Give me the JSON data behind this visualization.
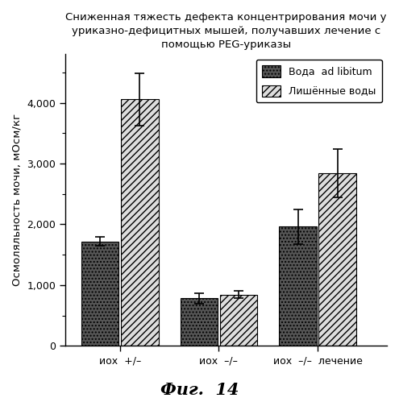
{
  "title_line1": "Сниженная тяжесть дефекта концентрирования мочи у",
  "title_line2": "уриказно-дефицитных мышей, получавших лечение с",
  "title_line3": "помощью PEG-уриказы",
  "ylabel": "Осмоляльность мочи, мОсм/кг",
  "xlabel_groups": [
    "иох  +/–",
    "иох  –/–",
    "иох  –/–  лечение"
  ],
  "figcaption": "Фиг.  14",
  "bar_values": [
    [
      1720,
      4060
    ],
    [
      780,
      840
    ],
    [
      1960,
      2840
    ]
  ],
  "bar_errors": [
    [
      70,
      430
    ],
    [
      90,
      60
    ],
    [
      280,
      400
    ]
  ],
  "ylim": [
    0,
    4800
  ],
  "yticks": [
    0,
    1000,
    2000,
    3000,
    4000
  ],
  "ytick_labels": [
    "0",
    "1,000",
    "2,000",
    "3,000",
    "4,000"
  ],
  "legend_labels": [
    "Вода  ad libitum",
    "Лишённые воды"
  ],
  "bar_width": 0.38,
  "group_positions": [
    1,
    2,
    3
  ],
  "color_solid": "#555555",
  "color_hatch": "#dddddd",
  "hatch_solid": "....",
  "hatch_stripe": "////",
  "background_color": "#ffffff",
  "title_fontsize": 9.5,
  "axis_fontsize": 9.5,
  "tick_fontsize": 9,
  "legend_fontsize": 9,
  "caption_fontsize": 15
}
